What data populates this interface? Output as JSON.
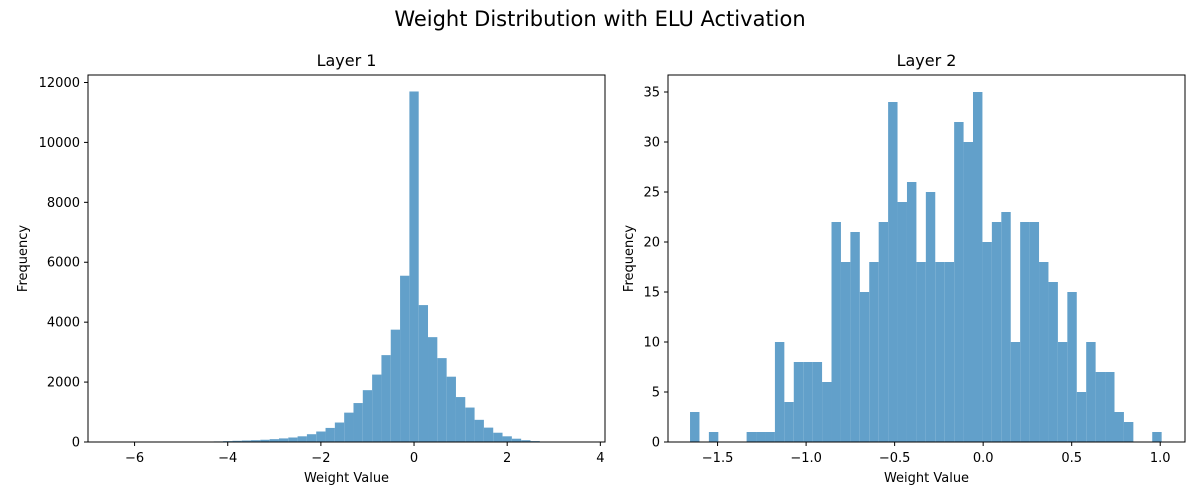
{
  "figure_title": "Weight Distribution with ELU Activation",
  "colors": {
    "bar": "#62a0ca",
    "axis": "#000000",
    "background": "#ffffff"
  },
  "chart_data": [
    {
      "type": "bar",
      "subtype": "histogram",
      "title": "Layer 1",
      "xlabel": "Weight Value",
      "ylabel": "Frequency",
      "xlim": [
        -7.0,
        4.1
      ],
      "ylim": [
        0,
        12250
      ],
      "xticks": [
        -6,
        -4,
        -2,
        0,
        2,
        4
      ],
      "xtick_labels": [
        "−6",
        "−4",
        "−2",
        "0",
        "2",
        "4"
      ],
      "yticks": [
        0,
        2000,
        4000,
        6000,
        8000,
        10000,
        12000
      ],
      "ytick_labels": [
        "0",
        "2000",
        "4000",
        "6000",
        "8000",
        "10000",
        "12000"
      ],
      "bin_edges": [
        -6.5,
        -6.3,
        -6.1,
        -5.9,
        -5.7,
        -5.5,
        -5.3,
        -5.1,
        -4.9,
        -4.7,
        -4.5,
        -4.3,
        -4.1,
        -3.9,
        -3.7,
        -3.5,
        -3.3,
        -3.1,
        -2.9,
        -2.7,
        -2.5,
        -2.3,
        -2.1,
        -1.9,
        -1.7,
        -1.5,
        -1.3,
        -1.1,
        -0.9,
        -0.7,
        -0.5,
        -0.3,
        -0.1,
        0.1,
        0.3,
        0.5,
        0.7,
        0.9,
        1.1,
        1.3,
        1.5,
        1.7,
        1.9,
        2.1,
        2.3,
        2.5,
        2.7,
        2.9,
        3.1,
        3.3,
        3.5
      ],
      "values": [
        1,
        0,
        0,
        0,
        0,
        0,
        0,
        0,
        8,
        15,
        15,
        20,
        30,
        40,
        50,
        60,
        75,
        95,
        120,
        150,
        190,
        260,
        350,
        470,
        650,
        980,
        1300,
        1730,
        2250,
        2900,
        3750,
        5550,
        11700,
        4570,
        3500,
        2800,
        2180,
        1500,
        1150,
        740,
        480,
        310,
        190,
        110,
        60,
        30,
        15,
        8,
        3,
        1
      ]
    },
    {
      "type": "bar",
      "subtype": "histogram",
      "title": "Layer 2",
      "xlabel": "Weight Value",
      "ylabel": "Frequency",
      "xlim": [
        -1.78,
        1.14
      ],
      "ylim": [
        0,
        36.7
      ],
      "xticks": [
        -1.5,
        -1.0,
        -0.5,
        0.0,
        0.5,
        1.0
      ],
      "xtick_labels": [
        "−1.5",
        "−1.0",
        "−0.5",
        "0.0",
        "0.5",
        "1.0"
      ],
      "yticks": [
        0,
        5,
        10,
        15,
        20,
        25,
        30,
        35
      ],
      "ytick_labels": [
        "0",
        "5",
        "10",
        "15",
        "20",
        "25",
        "30",
        "35"
      ],
      "bin_edges": [
        -1.6556,
        -1.6023,
        -1.5491,
        -1.4958,
        -1.4425,
        -1.3892,
        -1.336,
        -1.2827,
        -1.2294,
        -1.1761,
        -1.1229,
        -1.0696,
        -1.0163,
        -0.963,
        -0.9098,
        -0.8565,
        -0.8032,
        -0.7499,
        -0.6967,
        -0.6434,
        -0.5901,
        -0.5368,
        -0.4836,
        -0.4303,
        -0.377,
        -0.3237,
        -0.2705,
        -0.2172,
        -0.1639,
        -0.1106,
        -0.0574,
        -0.0041,
        0.0492,
        0.1025,
        0.1557,
        0.209,
        0.2623,
        0.3156,
        0.3688,
        0.4221,
        0.4754,
        0.5287,
        0.5819,
        0.6352,
        0.6885,
        0.7418,
        0.795,
        0.8483,
        0.9016,
        0.9549,
        1.0081
      ],
      "values": [
        3,
        0,
        1,
        0,
        0,
        0,
        1,
        1,
        1,
        10,
        4,
        8,
        8,
        8,
        6,
        22,
        18,
        21,
        15,
        18,
        22,
        34,
        24,
        26,
        18,
        25,
        18,
        18,
        32,
        30,
        35,
        20,
        22,
        23,
        10,
        22,
        22,
        18,
        16,
        10,
        15,
        5,
        10,
        7,
        7,
        3,
        2,
        0,
        0,
        1
      ]
    }
  ]
}
